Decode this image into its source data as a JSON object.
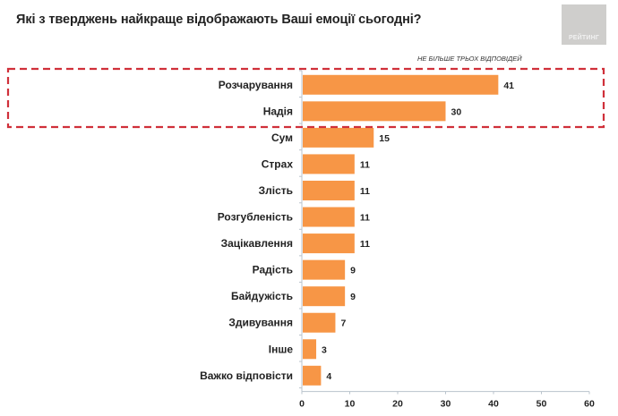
{
  "header": {
    "title": "Які з тверджень найкраще відображають Ваші емоції сьогодні?",
    "logo_text": "РЕЙТИНГ",
    "note": "НЕ БІЛЬШЕ ТРЬОХ ВІДПОВІДЕЙ"
  },
  "colors": {
    "bar": "#f79646",
    "highlight_border": "#d0303a",
    "logo_bg": "#cfcecc"
  },
  "chart_data": {
    "type": "bar",
    "orientation": "horizontal",
    "title": "Які з тверджень найкраще відображають Ваші емоції сьогодні?",
    "subtitle": "НЕ БІЛЬШЕ ТРЬОХ ВІДПОВІДЕЙ",
    "xlabel": "",
    "ylabel": "",
    "xlim": [
      0,
      60
    ],
    "xticks": [
      0,
      10,
      20,
      30,
      40,
      50,
      60
    ],
    "grid": false,
    "categories": [
      "Розчарування",
      "Надія",
      "Сум",
      "Страх",
      "Злість",
      "Розгубленість",
      "Зацікавлення",
      "Радість",
      "Байдужість",
      "Здивування",
      "Інше",
      "Важко відповісти"
    ],
    "values": [
      41,
      30,
      15,
      11,
      11,
      11,
      11,
      9,
      9,
      7,
      3,
      4
    ],
    "highlighted": [
      "Розчарування",
      "Надія"
    ]
  }
}
